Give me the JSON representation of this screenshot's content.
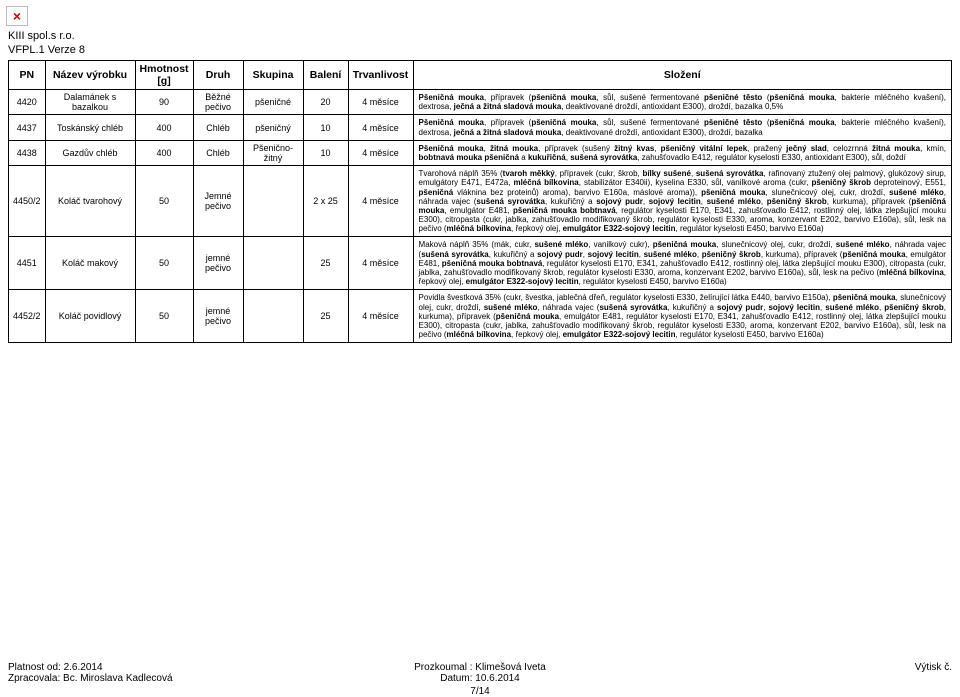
{
  "header": {
    "company": "KIII spol.s r.o.",
    "doc_version": "VFPL.1 Verze 8"
  },
  "columns": {
    "pn": "PN",
    "name": "Název výrobku",
    "weight": "Hmotnost [g]",
    "type": "Druh",
    "group": "Skupina",
    "pack": "Balení",
    "shelf": "Trvanlivost",
    "comp": "Složení"
  },
  "rows": [
    {
      "pn": "4420",
      "name": "Dalamánek s bazalkou",
      "weight": "90",
      "type": "Běžné pečivo",
      "group": "pšeničné",
      "pack": "20",
      "shelf": "4 měsíce",
      "comp": "Pšeničná mouka, přípravek (pšeničná mouka, sůl, sušené fermentované pšeničné těsto (pšeničná mouka, bakterie mléčného kvašení), dextrosa, ječná a žitná sladová mouka, deaktivované droždí, antioxidant E300), droždí, bazalka 0,5%"
    },
    {
      "pn": "4437",
      "name": "Toskánský chléb",
      "weight": "400",
      "type": "Chléb",
      "group": "pšeničný",
      "pack": "10",
      "shelf": "4 měsíce",
      "comp": "Pšeničná mouka, přípravek (pšeničná mouka, sůl, sušené fermentované pšeničné těsto (pšeničná mouka, bakterie mléčného kvašení), dextrosa, ječná a žitná sladová mouka, deaktivované droždí, antioxidant E300), droždí, bazalka"
    },
    {
      "pn": "4438",
      "name": "Gazdův chléb",
      "weight": "400",
      "type": "Chléb",
      "group": "Pšenično-žitný",
      "pack": "10",
      "shelf": "4 měsíce",
      "comp": "Pšeničná mouka, žitná mouka, přípravek (sušený žitný kvas, pšeničný vitální lepek, pražený ječný slad, celozrnná žitná mouka, kmín, bobtnavá mouka pšeničná a kukuřičná, sušená syrovátka, zahušťovadlo E412, regulátor kyselosti E330, antioxidant E300), sůl, doždí"
    },
    {
      "pn": "4450/2",
      "name": "Koláč tvarohový",
      "weight": "50",
      "type": "Jemné pečivo",
      "group": "",
      "pack": "2 x 25",
      "shelf": "4 měsíce",
      "comp": "Tvarohová náplň 35% (tvaroh měkký, přípravek (cukr, škrob, bílky sušené, sušená syrovátka, rafinovaný ztužený olej palmový, glukózový sirup, emulgátory E471, E472a, mléčná bílkovina, stabilizátor E340ii), kyselina E330, sůl, vanilkové aroma (cukr, pšeničný škrob deproteinový, E551, pšeničná vláknina bez proteinů) aroma), barvivo E160a, máslové aroma)), pšeničná mouka, slunečnicový olej, cukr, droždí, sušené mléko, náhrada vajec (sušená syrovátka, kukuřičný a sojový pudr, sojový lecitin, sušené mléko, pšeničný škrob, kurkuma), přípravek (pšeničná mouka, emulgátor E481, pšeničná mouka bobtnavá, regulátor kyselosti E170, E341, zahušťovadlo E412, rostlinný olej, látka zlepšující mouku E300), citropasta (cukr, jablka, zahušťovadlo modifikovaný škrob, regulátor kyselosti E330, aroma, konzervant E202, barvivo E160a), sůl, lesk na pečivo (mléčná bílkovina, řepkový olej, emulgátor E322-sojový lecitin, regulátor kyselosti E450, barvivo E160a)"
    },
    {
      "pn": "4451",
      "name": "Koláč makový",
      "weight": "50",
      "type": "jemné pečivo",
      "group": "",
      "pack": "25",
      "shelf": "4 měsíce",
      "comp": "Maková náplň 35% (mák, cukr, sušené mléko, vanilkový cukr), pšeničná mouka, slunečnicový olej, cukr, droždí, sušené mléko, náhrada vajec (sušená syrovátka, kukuřičný a sojový pudr, sojový lecitin, sušené mléko, pšeničný škrob, kurkuma), přípravek (pšeničná mouka, emulgátor E481, pšeničná mouka bobtnavá, regulátor kyselosti E170, E341, zahušťovadlo E412, rostlinný olej, látka zlepšující mouku E300), citropasta (cukr, jablka, zahušťovadlo modifikovaný škrob, regulátor kyselosti E330, aroma, konzervant E202, barvivo E160a), sůl, lesk na pečivo (mléčná bílkovina, řepkový olej, emulgátor E322-sojový lecitin, regulátor kyselosti E450, barvivo E160a)"
    },
    {
      "pn": "4452/2",
      "name": "Koláč povidlový",
      "weight": "50",
      "type": "jemné pečivo",
      "group": "",
      "pack": "25",
      "shelf": "4 měsíce",
      "comp": "Povidla švestková 35% (cukr, švestka, jablečná dřeň, regulátor kyselosti E330, želírující látka E440, barvivo E150a), pšeničná mouka, slunečnicový olej, cukr, droždí, sušené mléko, náhrada vajec (sušená syrovátka, kukuřičný a sojový pudr, sojový lecitin, sušené mléko, pšeničný škrob, kurkuma), přípravek (pšeničná mouka, emulgátor E481, regulátor kyselosti E170, E341, zahušťovadlo E412, rostlinný olej, látka zlepšující mouku E300), citropasta (cukr, jablka, zahušťovadlo modifikovaný škrob, regulátor kyselosti E330, aroma, konzervant E202, barvivo E160a), sůl, lesk na pečivo (mléčná bílkovina, řepkový olej, emulgátor E322-sojový lecitin, regulátor kyselosti E450, barvivo E160a)"
    }
  ],
  "footer": {
    "left_line1": "Platnost od: 2.6.2014",
    "left_line2": "Zpracovala: Bc. Miroslava Kadlecová",
    "center_line1": "Prozkoumal : Klimešová Iveta",
    "center_line2": "Datum: 10.6.2014",
    "right_line1": "Výtisk č.",
    "page": "7/14"
  }
}
